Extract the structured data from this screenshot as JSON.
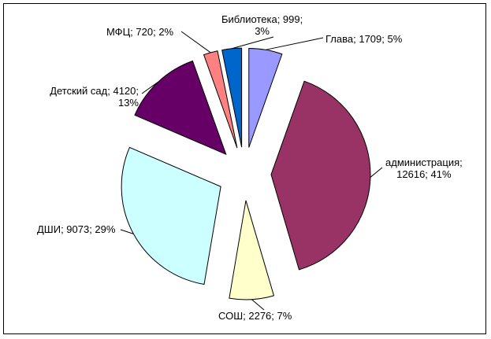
{
  "chart_data": {
    "type": "pie",
    "exploded": true,
    "title": "",
    "legend": "none",
    "slices": [
      {
        "name": "Глава",
        "value": 1709,
        "percent": "5%",
        "color": "#9999ff",
        "label_line1": "Глава; 1709; 5%",
        "label_line2": ""
      },
      {
        "name": "администрация",
        "value": 12616,
        "percent": "41%",
        "color": "#993366",
        "label_line1": "администрация;",
        "label_line2": "12616; 41%"
      },
      {
        "name": "СОШ",
        "value": 2276,
        "percent": "7%",
        "color": "#ffffcc",
        "label_line1": "СОШ; 2276; 7%",
        "label_line2": ""
      },
      {
        "name": "ДШИ",
        "value": 9073,
        "percent": "29%",
        "color": "#ccffff",
        "label_line1": "ДШИ; 9073; 29%",
        "label_line2": ""
      },
      {
        "name": "Детский сад",
        "value": 4120,
        "percent": "13%",
        "color": "#660066",
        "label_line1": "Детский сад; 4120;",
        "label_line2": "13%"
      },
      {
        "name": "МФЦ",
        "value": 720,
        "percent": "2%",
        "color": "#ff8080",
        "label_line1": "МФЦ; 720; 2%",
        "label_line2": ""
      },
      {
        "name": "Библиотека",
        "value": 999,
        "percent": "3%",
        "color": "#0066cc",
        "label_line1": "Библиотека; 999;",
        "label_line2": "3%"
      }
    ]
  }
}
